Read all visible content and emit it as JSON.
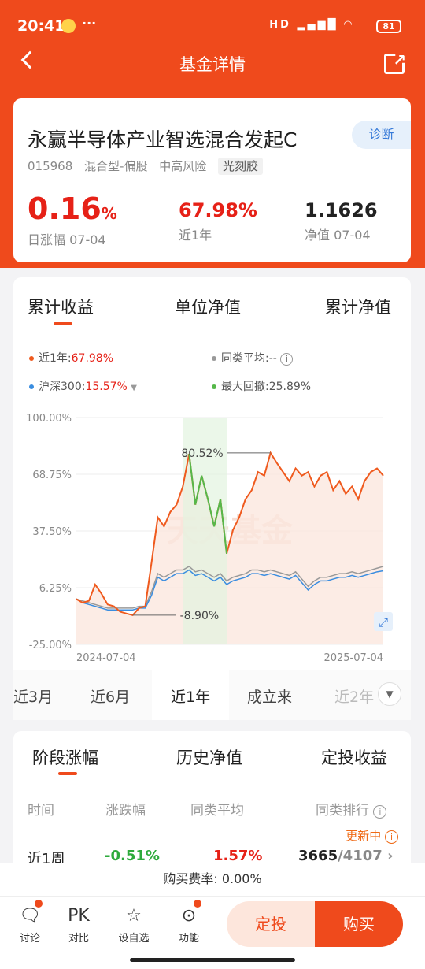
{
  "status": {
    "time": "20:41",
    "dots": "···",
    "signal": "HD",
    "battery": "81"
  },
  "nav": {
    "title": "基金详情"
  },
  "fund": {
    "name": "永赢半导体产业智选混合发起C",
    "diagnose": "诊断",
    "code": "015968",
    "type": "混合型-偏股",
    "risk": "中高风险",
    "theme": "光刻胶",
    "daily": {
      "value": "0.16",
      "unit": "%",
      "label": "日涨幅 07-04"
    },
    "year": {
      "value": "67.98%",
      "label": "近1年"
    },
    "nav": {
      "value": "1.1626",
      "label": "净值 07-04"
    }
  },
  "chart_tabs": [
    "累计收益",
    "单位净值",
    "累计净值"
  ],
  "legend": {
    "fund": "近1年:",
    "fund_val": "67.98%",
    "peer": "同类平均:--",
    "index": "沪深300:",
    "index_val": "15.57%",
    "drawdown": "最大回撤:",
    "drawdown_val": "25.89%"
  },
  "colors": {
    "fund": "#ef5a1e",
    "peer": "#999999",
    "index": "#3a8de0",
    "drawdown": "#55b84a"
  },
  "chart_data": {
    "type": "line",
    "y_ticks": [
      "100.00%",
      "68.75%",
      "37.50%",
      "6.25%",
      "-25.00%"
    ],
    "ylim": [
      -25,
      100
    ],
    "x_labels": [
      "2024-07-04",
      "2025-07-04"
    ],
    "annotations": [
      "80.52%",
      "-8.90%"
    ],
    "watermark": "天天基金",
    "series": [
      {
        "name": "近1年",
        "values": [
          0,
          -2,
          -1,
          8,
          3,
          -3,
          -4,
          -7,
          -8,
          -8.9,
          -5,
          -4,
          20,
          45,
          40,
          48,
          52,
          62,
          80,
          52,
          68,
          55,
          40,
          55,
          25,
          38,
          45,
          55,
          60,
          70,
          68,
          80.52,
          75,
          70,
          65,
          72,
          68,
          70,
          62,
          68,
          70,
          60,
          65,
          58,
          62,
          55,
          65,
          70,
          72,
          68
        ]
      },
      {
        "name": "沪深300",
        "values": [
          0,
          -2,
          -3,
          -4,
          -5,
          -6,
          -6,
          -6,
          -6,
          -6,
          -5,
          -5,
          2,
          12,
          10,
          12,
          14,
          14,
          16,
          13,
          14,
          12,
          10,
          12,
          8,
          10,
          11,
          12,
          14,
          14,
          13,
          14,
          13,
          12,
          11,
          13,
          9,
          5,
          8,
          10,
          10,
          11,
          12,
          12,
          13,
          12,
          13,
          14,
          15,
          15.57
        ]
      },
      {
        "name": "同类平均",
        "values": [
          0,
          -1,
          -2,
          -3,
          -4,
          -5,
          -5,
          -5,
          -5,
          -5,
          -4,
          -4,
          4,
          14,
          12,
          14,
          16,
          16,
          18,
          15,
          16,
          14,
          12,
          14,
          10,
          12,
          13,
          14,
          16,
          16,
          15,
          16,
          15,
          14,
          13,
          15,
          11,
          7,
          10,
          12,
          12,
          13,
          14,
          14,
          15,
          14,
          15,
          16,
          17,
          18
        ]
      }
    ]
  },
  "period_tabs": [
    "近3月",
    "近6月",
    "近1年",
    "成立来",
    "近2年"
  ],
  "perf": {
    "tabs": [
      "阶段涨幅",
      "历史净值",
      "定投收益"
    ],
    "cols": [
      "时间",
      "涨跌幅",
      "同类平均",
      "同类排行"
    ],
    "update": "更新中",
    "row": {
      "period": "近1周",
      "change": "-0.51%",
      "avg": "1.57%",
      "rank": "3665",
      "total": "/4107"
    }
  },
  "fee": "购买费率: 0.00%",
  "bottom": {
    "items": [
      "讨论",
      "对比",
      "设自选",
      "功能"
    ],
    "pk": "PK",
    "dingtou": "定投",
    "buy": "购买"
  }
}
